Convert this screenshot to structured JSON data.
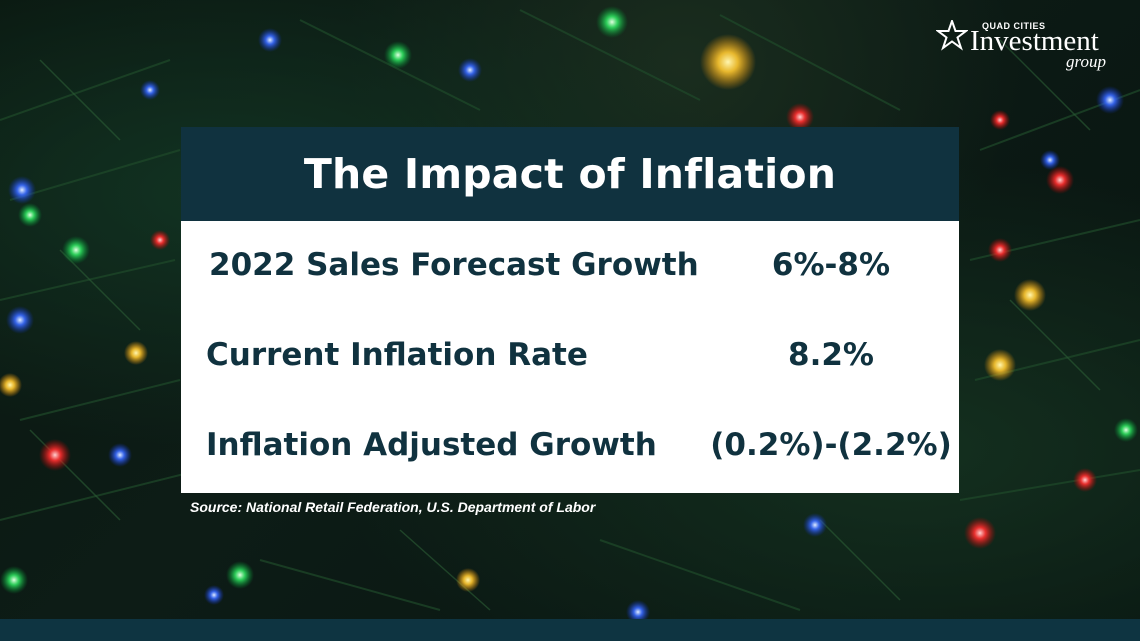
{
  "logo": {
    "small_text": "QUAD CITIES",
    "main_text": "Investment",
    "sub_text": "group",
    "icon": "star-icon"
  },
  "card": {
    "title": "The Impact of Inflation",
    "rows": [
      {
        "label": "2022 Sales Forecast Growth",
        "value": "6%-8%"
      },
      {
        "label": "Current Inflation Rate",
        "value": "8.2%"
      },
      {
        "label": "Inflation Adjusted Growth",
        "value": "(0.2%)-(2.2%)"
      }
    ]
  },
  "source": "Source: National Retail Federation, U.S. Department of Labor",
  "colors": {
    "header_bg": "#10323f",
    "text_dark": "#10323f",
    "bottom_bar": "#0e3441"
  }
}
